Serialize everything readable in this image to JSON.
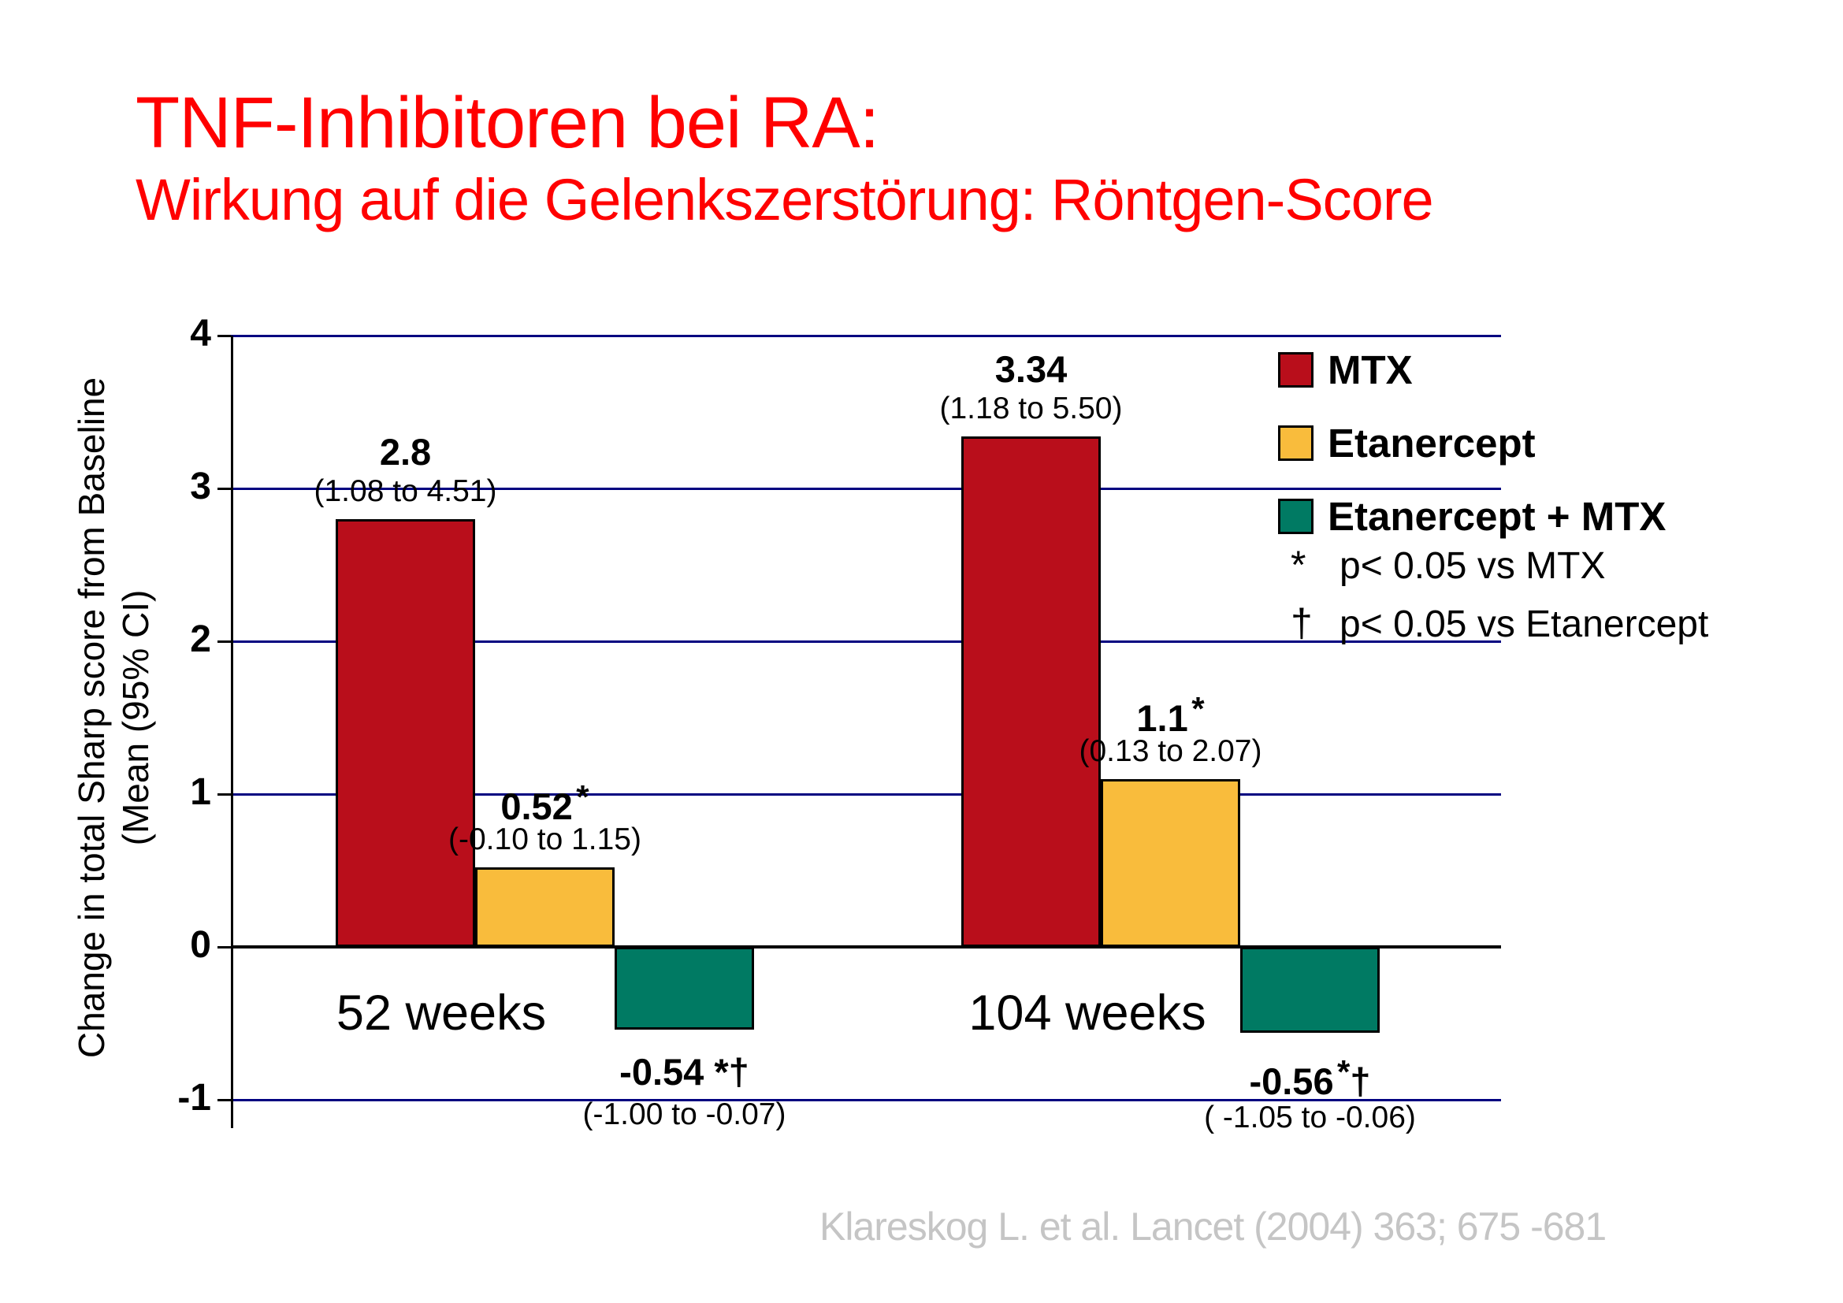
{
  "title": {
    "line1": "TNF-Inhibitoren bei RA:",
    "line2": "Wirkung auf die Gelenkszerstörung: Röntgen-Score",
    "color": "#FF0000"
  },
  "footnotes": [
    {
      "marker": "*",
      "text": "p< 0.05 vs MTX"
    },
    {
      "marker": "†",
      "text": "p< 0.05 vs Etanercept"
    }
  ],
  "citation": "Klareskog L. et al. Lancet (2004) 363; 675 -681",
  "chart_data": {
    "type": "bar",
    "title": "",
    "ylabel_line1": "Change in total Sharp score from Baseline",
    "ylabel_line2": "(Mean (95% CI)",
    "ylim": [
      -1,
      4
    ],
    "yticks": [
      4,
      3,
      2,
      1,
      0,
      -1
    ],
    "grid": "horizontal navy gridlines at 4,3,2,1,-1; thick black zero line",
    "legend_position": "top-right",
    "gridline_color": "#000080",
    "axis_color": "#000000",
    "categories": [
      "52 weeks",
      "104 weeks"
    ],
    "series": [
      {
        "name": "MTX",
        "color": "#B90E1B",
        "values": [
          2.8,
          3.34
        ],
        "value_labels": [
          "2.8",
          "3.34"
        ],
        "sup_marks": [
          "",
          ""
        ],
        "inline_marks": [
          "",
          ""
        ],
        "ci_labels": [
          "(1.08 to 4.51)",
          "(1.18 to 5.50)"
        ]
      },
      {
        "name": "Etanercept",
        "color": "#F9BC3C",
        "values": [
          0.52,
          1.1
        ],
        "value_labels": [
          "0.52",
          "1.1"
        ],
        "sup_marks": [
          "*",
          "*"
        ],
        "inline_marks": [
          "",
          ""
        ],
        "ci_labels": [
          "(-0.10 to 1.15)",
          "(0.13 to 2.07)"
        ]
      },
      {
        "name": "Etanercept + MTX",
        "color": "#007A63",
        "values": [
          -0.54,
          -0.56
        ],
        "value_labels": [
          "-0.54",
          "-0.56"
        ],
        "sup_marks": [
          "",
          "*"
        ],
        "inline_marks": [
          " *†",
          "†"
        ],
        "ci_labels": [
          "(-1.00 to -0.07)",
          "( -1.05 to -0.06)"
        ]
      }
    ]
  }
}
